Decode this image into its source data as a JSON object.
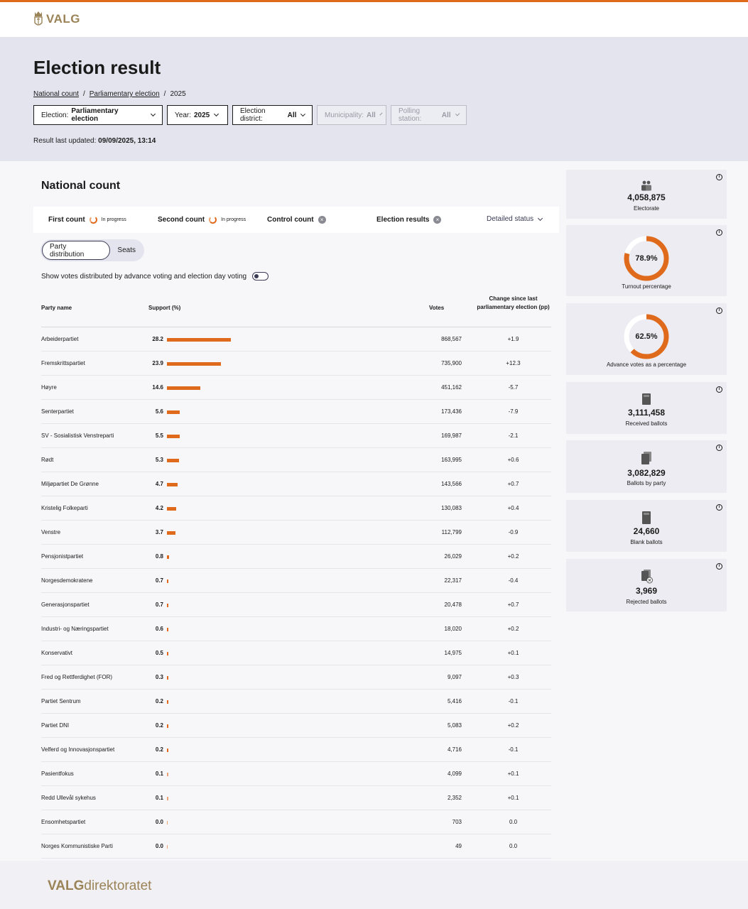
{
  "brand": {
    "logo_text": "VALG",
    "gold": "#9b8358",
    "accent": "#e06a1b"
  },
  "page": {
    "title": "Election result"
  },
  "breadcrumb": {
    "items": [
      "National count",
      "Parliamentary election",
      "2025"
    ]
  },
  "filters": [
    {
      "label": "Election:",
      "value": "Parliamentary election",
      "enabled": true
    },
    {
      "label": "Year:",
      "value": "2025",
      "enabled": true
    },
    {
      "label": "Election district:",
      "value": "All",
      "enabled": true
    },
    {
      "label": "Municipality:",
      "value": "All",
      "enabled": false
    },
    {
      "label": "Polling station:",
      "value": "All",
      "enabled": false
    }
  ],
  "updated": {
    "label": "Result last updated:",
    "value": "09/09/2025, 13:14"
  },
  "card": {
    "title": "National count"
  },
  "status": {
    "first": {
      "label": "First count",
      "state": "In progress",
      "icon": "spinner-icon"
    },
    "second": {
      "label": "Second count",
      "state": "In progress",
      "icon": "spinner-icon"
    },
    "control": {
      "label": "Control count",
      "icon": "x-circle-icon"
    },
    "results": {
      "label": "Election results",
      "icon": "x-circle-icon"
    },
    "detailed": "Detailed status"
  },
  "tabs": {
    "party": "Party distribution",
    "seats": "Seats",
    "active": "party"
  },
  "toggle": {
    "label": "Show votes distributed by advance voting and election day voting",
    "on": false
  },
  "table": {
    "headers": {
      "party": "Party name",
      "support": "Support (%)",
      "votes": "Votes",
      "change": "Change since last parliamentary election (pp)"
    },
    "rows": [
      {
        "party": "Arbeiderpartiet",
        "support": "28.2",
        "support_value": 28.2,
        "votes": "868,567",
        "change": "+1.9"
      },
      {
        "party": "Fremskrittspartiet",
        "support": "23.9",
        "support_value": 23.9,
        "votes": "735,900",
        "change": "+12.3"
      },
      {
        "party": "Høyre",
        "support": "14.6",
        "support_value": 14.6,
        "votes": "451,162",
        "change": "-5.7"
      },
      {
        "party": "Senterpartiet",
        "support": "5.6",
        "support_value": 5.6,
        "votes": "173,436",
        "change": "-7.9"
      },
      {
        "party": "SV - Sosialistisk Venstreparti",
        "support": "5.5",
        "support_value": 5.5,
        "votes": "169,987",
        "change": "-2.1"
      },
      {
        "party": "Rødt",
        "support": "5.3",
        "support_value": 5.3,
        "votes": "163,995",
        "change": "+0.6"
      },
      {
        "party": "Miljøpartiet De Grønne",
        "support": "4.7",
        "support_value": 4.7,
        "votes": "143,566",
        "change": "+0.7"
      },
      {
        "party": "Kristelig Folkeparti",
        "support": "4.2",
        "support_value": 4.2,
        "votes": "130,083",
        "change": "+0.4"
      },
      {
        "party": "Venstre",
        "support": "3.7",
        "support_value": 3.7,
        "votes": "112,799",
        "change": "-0.9"
      },
      {
        "party": "Pensjonistpartiet",
        "support": "0.8",
        "support_value": 0.8,
        "votes": "26,029",
        "change": "+0.2"
      },
      {
        "party": "Norgesdemokratene",
        "support": "0.7",
        "support_value": 0.7,
        "votes": "22,317",
        "change": "-0.4"
      },
      {
        "party": "Generasjonspartiet",
        "support": "0.7",
        "support_value": 0.7,
        "votes": "20,478",
        "change": "+0.7"
      },
      {
        "party": "Industri- og Næringspartiet",
        "support": "0.6",
        "support_value": 0.6,
        "votes": "18,020",
        "change": "+0.2"
      },
      {
        "party": "Konservativt",
        "support": "0.5",
        "support_value": 0.5,
        "votes": "14,975",
        "change": "+0.1"
      },
      {
        "party": "Fred og Rettferdighet (FOR)",
        "support": "0.3",
        "support_value": 0.3,
        "votes": "9,097",
        "change": "+0.3"
      },
      {
        "party": "Partiet Sentrum",
        "support": "0.2",
        "support_value": 0.2,
        "votes": "5,416",
        "change": "-0.1"
      },
      {
        "party": "Partiet DNI",
        "support": "0.2",
        "support_value": 0.2,
        "votes": "5,083",
        "change": "+0.2"
      },
      {
        "party": "Velferd og Innovasjonspartiet",
        "support": "0.2",
        "support_value": 0.2,
        "votes": "4,716",
        "change": "-0.1"
      },
      {
        "party": "Pasientfokus",
        "support": "0.1",
        "support_value": 0.1,
        "votes": "4,099",
        "change": "+0.1"
      },
      {
        "party": "Redd Ullevål sykehus",
        "support": "0.1",
        "support_value": 0.1,
        "votes": "2,352",
        "change": "+0.1"
      },
      {
        "party": "Ensomhetspartiet",
        "support": "0.0",
        "support_value": 0.0,
        "votes": "703",
        "change": "0.0"
      },
      {
        "party": "Norges Kommunistiske Parti",
        "support": "0.0",
        "support_value": 0.0,
        "votes": "49",
        "change": "0.0"
      }
    ]
  },
  "stats": {
    "electorate": {
      "value": "4,058,875",
      "label": "Electorate",
      "icon": "people-icon"
    },
    "turnout": {
      "value": "78.9%",
      "label": "Turnout percentage",
      "fraction": 0.789
    },
    "advance": {
      "value": "62.5%",
      "label": "Advance votes as a percentage",
      "fraction": 0.625
    },
    "received": {
      "value": "3,111,458",
      "label": "Received ballots",
      "icon": "ballot-icon"
    },
    "by_party": {
      "value": "3,082,829",
      "label": "Ballots by party",
      "icon": "ballots-stack-icon"
    },
    "blank": {
      "value": "24,660",
      "label": "Blank ballots",
      "icon": "blank-ballot-icon"
    },
    "rejected": {
      "value": "3,969",
      "label": "Rejected ballots",
      "icon": "rejected-ballot-icon"
    }
  },
  "footer": {
    "logo_bold": "VALG",
    "logo_rest": "direktoratet"
  }
}
